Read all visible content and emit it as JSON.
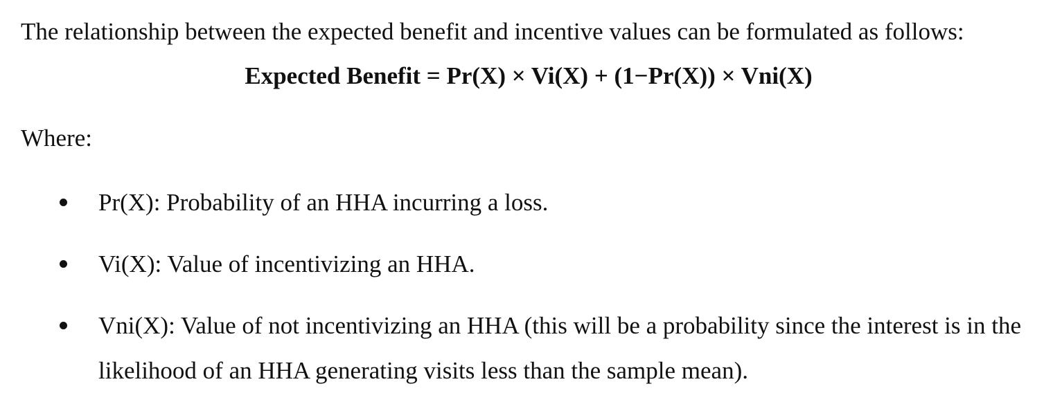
{
  "intro": "The relationship between the expected benefit and incentive values can be formulated as follows:",
  "formula": "Expected Benefit = Pr(X) × Vi(X) + (1−Pr(X)) × Vni(X)",
  "where_label": "Where:",
  "definitions": [
    {
      "text": "Pr(X): Probability of an HHA incurring a loss."
    },
    {
      "text": "Vi(X): Value of incentivizing an HHA."
    },
    {
      "text": "Vni(X): Value of not incentivizing an HHA (this will be a probability since the interest is in the likelihood of an HHA generating visits less than the sample mean)."
    }
  ]
}
